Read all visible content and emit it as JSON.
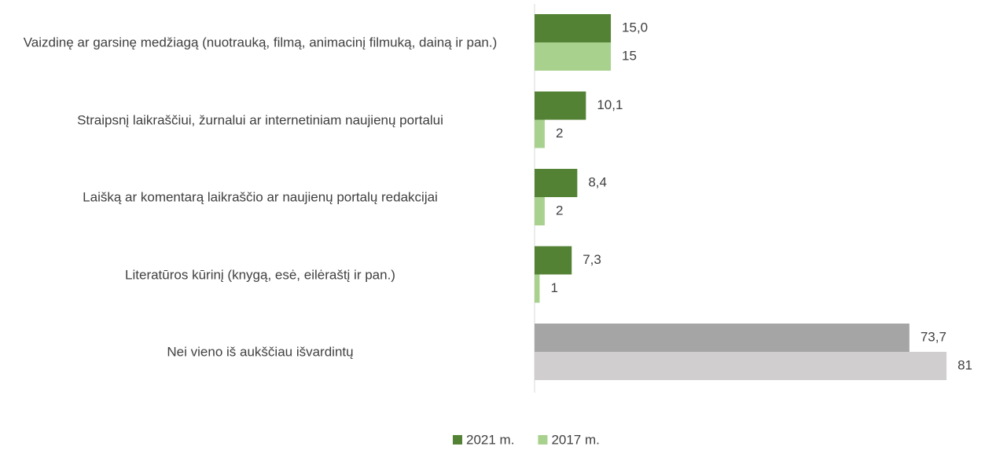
{
  "chart_data": {
    "type": "barh",
    "categories": [
      "Vaizdinę ar garsinę medžiagą (nuotrauką, filmą, animacinį filmuką, dainą ir pan.)",
      "Straipsnį laikraščiui, žurnalui ar internetiniam naujienų portalui",
      "Laišką ar komentarą laikraščio ar naujienų portalų redakcijai",
      "Literatūros kūrinį (knygą, esė, eilėraštį ir pan.)",
      "Nei vieno iš aukščiau išvardintų"
    ],
    "series": [
      {
        "name": "2021 m.",
        "color": "#548235",
        "colors": [
          "#548235",
          "#548235",
          "#548235",
          "#548235",
          "#a5a5a5"
        ],
        "values": [
          15.0,
          10.1,
          8.4,
          7.3,
          73.7
        ],
        "value_labels": [
          "15,0",
          "10,1",
          "8,4",
          "7,3",
          "73,7"
        ]
      },
      {
        "name": "2017 m.",
        "color": "#a9d18e",
        "colors": [
          "#a9d18e",
          "#a9d18e",
          "#a9d18e",
          "#a9d18e",
          "#d0cece"
        ],
        "values": [
          15,
          2,
          2,
          1,
          81
        ]
      }
    ],
    "legend": "bottom"
  }
}
